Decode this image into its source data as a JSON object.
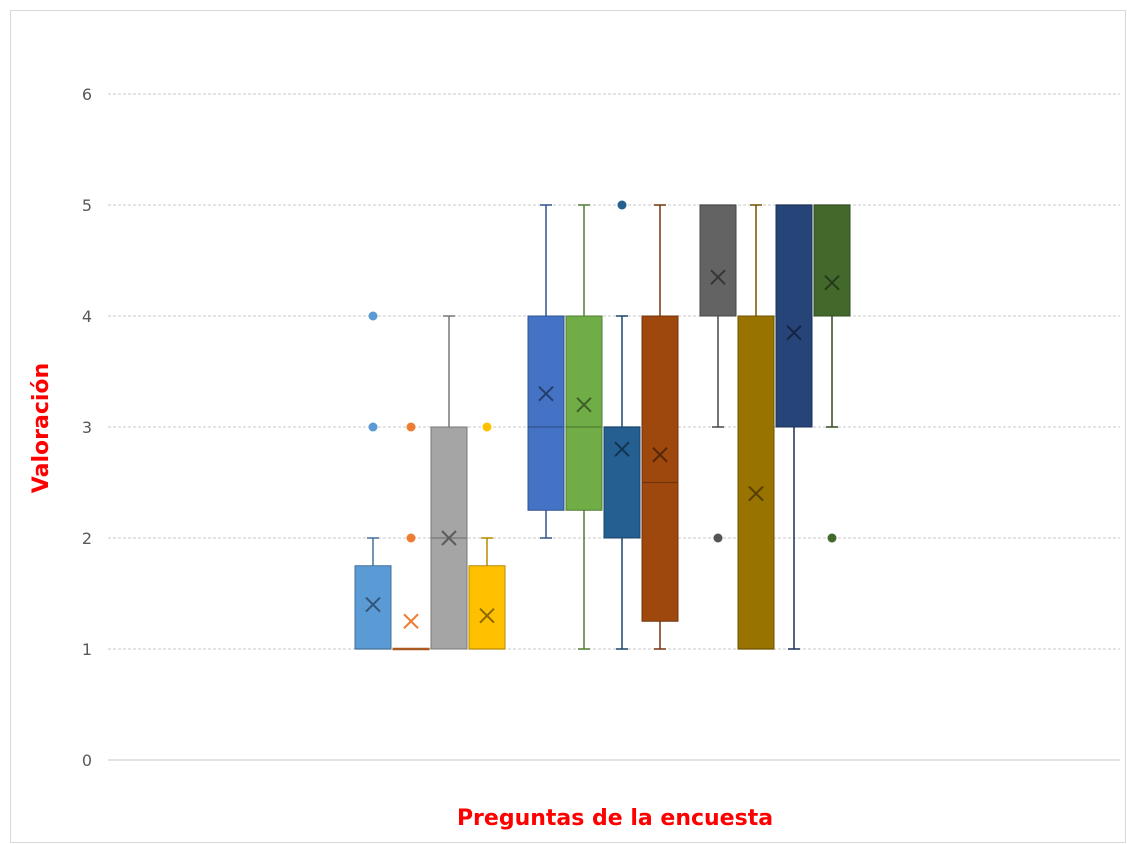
{
  "chart_data": {
    "type": "box",
    "title": "",
    "xlabel": "Preguntas de la encuesta",
    "ylabel": "Valoración",
    "ylim": [
      0,
      6
    ],
    "yticks": [
      0,
      1,
      2,
      3,
      4,
      5,
      6
    ],
    "grid": "horizontal",
    "legend": "none",
    "series": [
      {
        "color": "#5b9bd5",
        "min": 1,
        "q1": 1,
        "median": 1,
        "q3": 1.75,
        "max": 2,
        "mean": 1.4,
        "outliers": [
          3,
          4
        ]
      },
      {
        "color": "#ed7d31",
        "min": 1,
        "q1": 1,
        "median": 1,
        "q3": 1,
        "max": 1,
        "mean": 1.25,
        "outliers": [
          2,
          3
        ]
      },
      {
        "color": "#a5a5a5",
        "min": 1,
        "q1": 1,
        "median": 2,
        "q3": 3,
        "max": 4,
        "mean": 2.0,
        "outliers": []
      },
      {
        "color": "#ffc000",
        "min": 1,
        "q1": 1,
        "median": 1,
        "q3": 1.75,
        "max": 2,
        "mean": 1.3,
        "outliers": [
          3
        ]
      },
      {
        "color": "#4472c4",
        "min": 2,
        "q1": 2.25,
        "median": 3,
        "q3": 4,
        "max": 5,
        "mean": 3.3,
        "outliers": []
      },
      {
        "color": "#70ad47",
        "min": 1,
        "q1": 2.25,
        "median": 3,
        "q3": 4,
        "max": 5,
        "mean": 3.2,
        "outliers": []
      },
      {
        "color": "#255e91",
        "min": 1,
        "q1": 2,
        "median": 3,
        "q3": 3,
        "max": 4,
        "mean": 2.8,
        "outliers": [
          5
        ]
      },
      {
        "color": "#9e480e",
        "min": 1,
        "q1": 1.25,
        "median": 2.5,
        "q3": 4,
        "max": 5,
        "mean": 2.75,
        "outliers": []
      },
      {
        "color": "#636363",
        "min": 3,
        "q1": 4,
        "median": 5,
        "q3": 5,
        "max": 5,
        "mean": 4.35,
        "outliers": [
          2
        ]
      },
      {
        "color": "#997300",
        "min": 1,
        "q1": 1,
        "median": 1,
        "q3": 4,
        "max": 5,
        "mean": 2.4,
        "outliers": []
      },
      {
        "color": "#264478",
        "min": 1,
        "q1": 3,
        "median": 5,
        "q3": 5,
        "max": 5,
        "mean": 3.85,
        "outliers": []
      },
      {
        "color": "#43682b",
        "min": 3,
        "q1": 4,
        "median": 5,
        "q3": 5,
        "max": 5,
        "mean": 4.3,
        "outliers": [
          2
        ]
      }
    ]
  }
}
